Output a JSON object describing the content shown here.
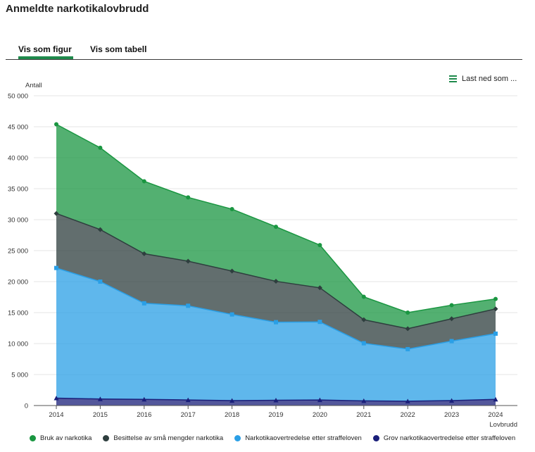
{
  "page": {
    "title": "Anmeldte narkotikalovbrudd",
    "tabs": [
      "Vis som figur",
      "Vis som tabell"
    ],
    "export_label": "Last ned som ..."
  },
  "colors": {
    "bruk": "#1a9641",
    "besittelse": "#2e3e3e",
    "overtredelse": "#2a9fe6",
    "grov": "#1a1f7a",
    "accent": "#1f8a4c"
  },
  "chart_data": {
    "type": "area",
    "stacked": true,
    "ylabel": "Antall",
    "xlabel": "Lovbrudd",
    "ylim": [
      0,
      50000
    ],
    "yticks": [
      0,
      5000,
      10000,
      15000,
      20000,
      25000,
      30000,
      35000,
      40000,
      45000,
      50000
    ],
    "ytick_labels": [
      "0",
      "5 000",
      "10 000",
      "15 000",
      "20 000",
      "25 000",
      "30 000",
      "35 000",
      "40 000",
      "45 000",
      "50 000"
    ],
    "grid": true,
    "legend_position": "bottom",
    "categories": [
      "2014",
      "2015",
      "2016",
      "2017",
      "2018",
      "2019",
      "2020",
      "2021",
      "2022",
      "2023",
      "2024"
    ],
    "series": [
      {
        "name": "Grov narkotikaovertredelse etter straffeloven",
        "key": "grov",
        "values": [
          1200,
          1050,
          1000,
          900,
          800,
          850,
          900,
          750,
          700,
          800,
          1000
        ]
      },
      {
        "name": "Narkotikaovertredelse etter straffeloven",
        "key": "overtredelse",
        "values": [
          21000,
          18950,
          15500,
          15200,
          13900,
          12600,
          12600,
          9300,
          8400,
          9600,
          10600
        ]
      },
      {
        "name": "Besittelse av små mengder narkotika",
        "key": "besittelse",
        "values": [
          8800,
          8400,
          8000,
          7200,
          7000,
          6600,
          5500,
          3800,
          3300,
          3600,
          4000
        ]
      },
      {
        "name": "Bruk av narkotika",
        "key": "bruk",
        "values": [
          14400,
          13200,
          11700,
          10300,
          10000,
          8800,
          6900,
          3700,
          2600,
          2200,
          1600
        ]
      }
    ],
    "legend_order": [
      "bruk",
      "besittelse",
      "overtredelse",
      "grov"
    ]
  }
}
